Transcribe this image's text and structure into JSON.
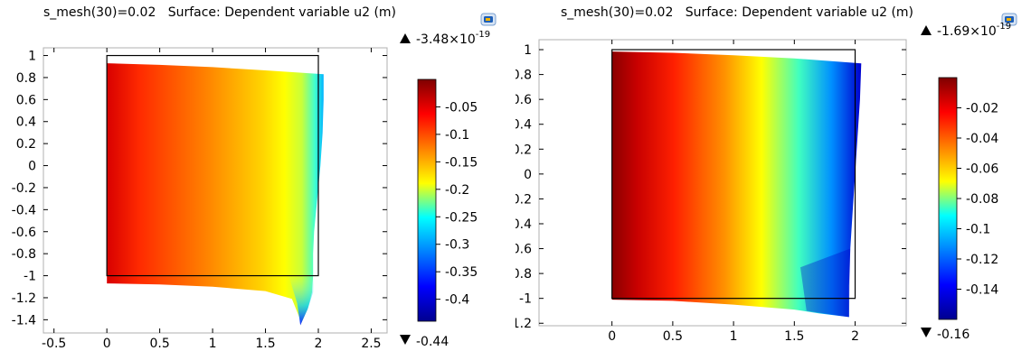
{
  "chart_data": [
    {
      "type": "heatmap",
      "title": "s_mesh(30)=0.02   Surface: Dependent variable u2 (m)",
      "xlabel": "",
      "ylabel": "",
      "xlim": [
        -0.6,
        2.65
      ],
      "ylim": [
        -1.52,
        1.07
      ],
      "x_ticks": [
        "-0.5",
        "0",
        "0.5",
        "1",
        "1.5",
        "2",
        "2.5"
      ],
      "y_ticks": [
        "1",
        "0.8",
        "0.6",
        "0.4",
        "0.2",
        "0",
        "-0.2",
        "-0.4",
        "-0.6",
        "-0.8",
        "-1",
        "-1.2",
        "-1.4"
      ],
      "reference_square": {
        "x": [
          0,
          2
        ],
        "y": [
          -1,
          1
        ]
      },
      "deformed_outline": [
        [
          0,
          0.93
        ],
        [
          0.5,
          0.915
        ],
        [
          1.0,
          0.895
        ],
        [
          1.5,
          0.865
        ],
        [
          2.05,
          0.83
        ],
        [
          2.05,
          0.6
        ],
        [
          2.04,
          0.3
        ],
        [
          2.02,
          0.0
        ],
        [
          1.99,
          -0.3
        ],
        [
          1.96,
          -0.6
        ],
        [
          1.95,
          -0.8
        ],
        [
          1.95,
          -1.0
        ],
        [
          1.94,
          -1.15
        ],
        [
          1.9,
          -1.3
        ],
        [
          1.83,
          -1.45
        ],
        [
          1.83,
          -1.4
        ],
        [
          1.75,
          -1.21
        ],
        [
          1.5,
          -1.14
        ],
        [
          1.0,
          -1.1
        ],
        [
          0.5,
          -1.08
        ],
        [
          0,
          -1.07
        ]
      ],
      "field": "Dependent variable u2 (m)",
      "colorbar": {
        "max_label": "-3.48×10",
        "max_exp": "-19",
        "min_label": "-0.44",
        "ticks": [
          "-0.05",
          "-0.1",
          "-0.15",
          "-0.2",
          "-0.25",
          "-0.3",
          "-0.35",
          "-0.4"
        ],
        "tick_values": [
          -0.05,
          -0.1,
          -0.15,
          -0.2,
          -0.25,
          -0.3,
          -0.35,
          -0.4
        ],
        "range": [
          -0.44,
          -3.48e-19
        ],
        "colormap": [
          "#7f0000",
          "#ff0000",
          "#ff8000",
          "#ffff00",
          "#00ffff",
          "#0080ff",
          "#0000ff",
          "#00008f"
        ]
      }
    },
    {
      "type": "heatmap",
      "title": "s_mesh(30)=0.02   Surface: Dependent variable u2 (m)",
      "xlabel": "",
      "ylabel": "",
      "xlim": [
        -0.6,
        2.42
      ],
      "ylim": [
        -1.22,
        1.08
      ],
      "x_ticks": [
        "0",
        "0.5",
        "1",
        "1.5",
        "2"
      ],
      "y_ticks": [
        "1",
        "0.8",
        "0.6",
        "0.4",
        "0.2",
        "0",
        "-0.2",
        "-0.4",
        "-0.6",
        "-0.8",
        "-1",
        "-1.2"
      ],
      "reference_square": {
        "x": [
          0,
          2
        ],
        "y": [
          -1,
          1
        ]
      },
      "deformed_outline": [
        [
          0,
          0.985
        ],
        [
          0.5,
          0.975
        ],
        [
          1.0,
          0.955
        ],
        [
          1.5,
          0.93
        ],
        [
          2.05,
          0.89
        ],
        [
          2.04,
          0.6
        ],
        [
          2.02,
          0.3
        ],
        [
          2.0,
          0.0
        ],
        [
          1.98,
          -0.3
        ],
        [
          1.96,
          -0.6
        ],
        [
          1.95,
          -0.9
        ],
        [
          1.95,
          -1.15
        ],
        [
          1.7,
          -1.12
        ],
        [
          1.5,
          -1.09
        ],
        [
          1.0,
          -1.05
        ],
        [
          0.5,
          -1.02
        ],
        [
          0,
          -1.01
        ]
      ],
      "field": "Dependent variable u2 (m)",
      "colorbar": {
        "max_label": "-1.69×10",
        "max_exp": "-19",
        "min_label": "-0.16",
        "ticks": [
          "-0.02",
          "-0.04",
          "-0.06",
          "-0.08",
          "-0.1",
          "-0.12",
          "-0.14"
        ],
        "tick_values": [
          -0.02,
          -0.04,
          -0.06,
          -0.08,
          -0.1,
          -0.12,
          -0.14
        ],
        "range": [
          -0.16,
          -1.69e-19
        ],
        "colormap": [
          "#7f0000",
          "#ff0000",
          "#ff8000",
          "#ffff00",
          "#00ffff",
          "#0080ff",
          "#0000ff",
          "#00008f"
        ]
      }
    }
  ]
}
